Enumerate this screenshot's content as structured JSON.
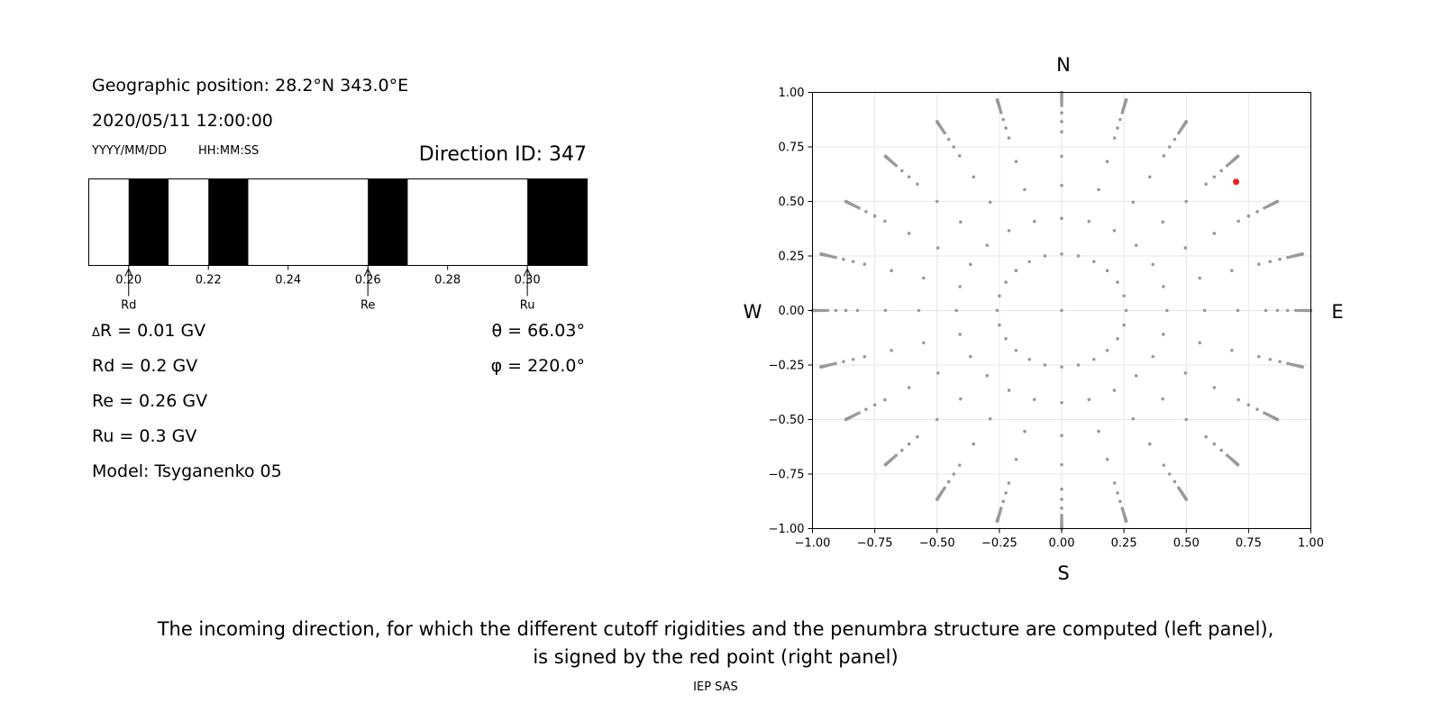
{
  "header": {
    "geo_position": "Geographic position: 28.2°N 343.0°E",
    "datetime": "2020/05/11 12:00:00",
    "date_format": "YYYY/MM/DD",
    "time_format": "HH:MM:SS",
    "direction_id": "Direction ID: 347"
  },
  "results": {
    "delta_r": "R = 0.01 GV",
    "delta_symbol": "Δ",
    "rd": "Rd = 0.2 GV",
    "re": "Re = 0.26 GV",
    "ru": "Ru = 0.3 GV",
    "model": "Model: Tsyganenko 05",
    "theta": "θ = 66.03°",
    "phi": "φ = 220.0°"
  },
  "caption": {
    "line1": "The incoming direction, for which the different cutoff rigidities and the penumbra structure are computed (left panel),",
    "line2": "is signed by the red point (right panel)",
    "credit": "IEP SAS"
  },
  "chart_data": [
    {
      "type": "penumbra-bar",
      "xlim": [
        0.19,
        0.315
      ],
      "ticks": [
        0.2,
        0.22,
        0.24,
        0.26,
        0.28,
        0.3
      ],
      "tick_labels": [
        "0.20",
        "0.22",
        "0.24",
        "0.26",
        "0.28",
        "0.30"
      ],
      "forbidden_intervals": [
        [
          0.2,
          0.21
        ],
        [
          0.22,
          0.23
        ],
        [
          0.26,
          0.27
        ],
        [
          0.3,
          0.315
        ]
      ],
      "markers": [
        {
          "label": "Rd",
          "value": 0.2
        },
        {
          "label": "Re",
          "value": 0.26
        },
        {
          "label": "Ru",
          "value": 0.3
        }
      ],
      "colors": {
        "forbidden": "#000000",
        "allowed": "#ffffff"
      }
    },
    {
      "type": "scatter",
      "xlim": [
        -1.0,
        1.0
      ],
      "ylim": [
        -1.0,
        1.0
      ],
      "xticks": [
        -1.0,
        -0.75,
        -0.5,
        -0.25,
        0.0,
        0.25,
        0.5,
        0.75,
        1.0
      ],
      "yticks": [
        -1.0,
        -0.75,
        -0.5,
        -0.25,
        0.0,
        0.25,
        0.5,
        0.75,
        1.0
      ],
      "xtick_labels": [
        "−1.00",
        "−0.75",
        "−0.50",
        "−0.25",
        "0.00",
        "0.25",
        "0.50",
        "0.75",
        "1.00"
      ],
      "ytick_labels": [
        "−1.00",
        "−0.75",
        "−0.50",
        "−0.25",
        "0.00",
        "0.25",
        "0.50",
        "0.75",
        "1.00"
      ],
      "grid": true,
      "compass": {
        "top": "N",
        "bottom": "S",
        "left": "W",
        "right": "E"
      },
      "grid_directions": {
        "azimuth_step_deg": 15,
        "zenith_deg": [
          0,
          15,
          25,
          35,
          45,
          55,
          60,
          65,
          70,
          72,
          74,
          76,
          78,
          80,
          82,
          84,
          86,
          88,
          90
        ]
      },
      "highlighted_point": {
        "x": 0.7,
        "y": 0.59
      },
      "colors": {
        "points": "#999999",
        "highlight": "#e8231b"
      }
    }
  ]
}
